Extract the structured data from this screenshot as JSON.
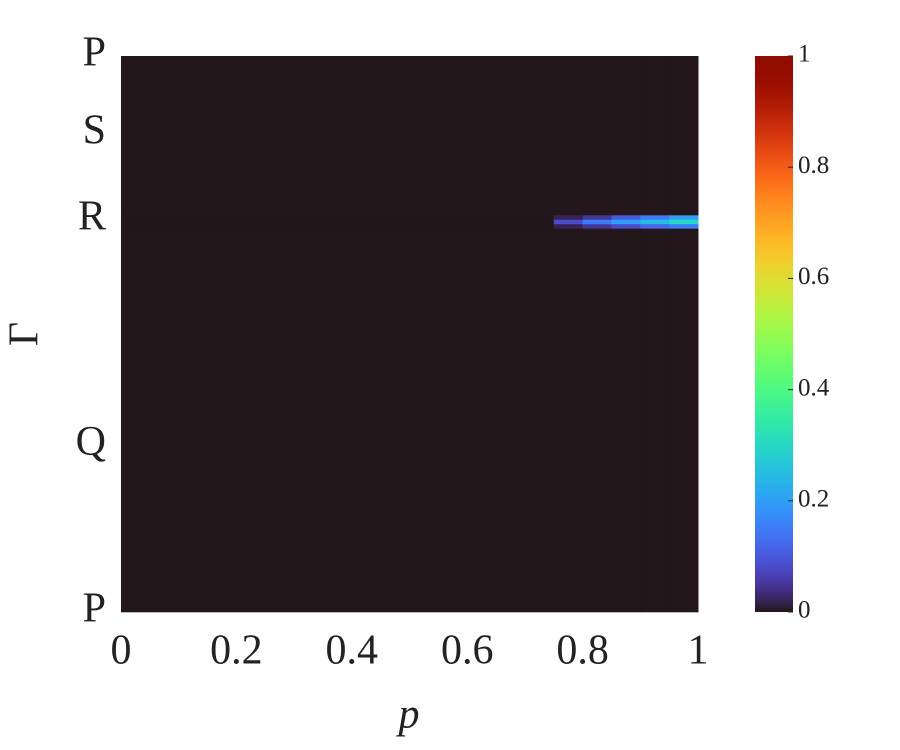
{
  "chart_data": {
    "type": "heatmap",
    "xlabel": "p",
    "ylabel": "Γ",
    "xlim": [
      0,
      1
    ],
    "xticks": [
      0,
      0.2,
      0.4,
      0.6,
      0.8,
      1
    ],
    "ylim": [
      0,
      1
    ],
    "yticks": [
      {
        "value": 0,
        "label": "P"
      },
      {
        "value": 0.3,
        "label": "Q"
      },
      {
        "value": 0.705,
        "label": "R"
      },
      {
        "value": 0.86,
        "label": "S"
      },
      {
        "value": 1,
        "label": "P"
      }
    ],
    "xbins": [
      0,
      0.75,
      0.8,
      0.85,
      0.9,
      0.95,
      1
    ],
    "ybins": [
      0,
      0.69,
      0.698,
      0.706,
      0.714,
      1
    ],
    "z": [
      [
        0,
        0,
        0,
        0,
        0,
        0
      ],
      [
        0,
        0.02,
        0.05,
        0.08,
        0.12,
        0.15
      ],
      [
        0,
        0.08,
        0.15,
        0.2,
        0.25,
        0.3
      ],
      [
        0,
        0.02,
        0.05,
        0.1,
        0.15,
        0.2
      ],
      [
        0,
        0,
        0,
        0,
        0,
        0
      ]
    ],
    "colormap": "turbo",
    "clim": [
      0,
      1
    ],
    "cticks": [
      0,
      0.2,
      0.4,
      0.6,
      0.8,
      1
    ]
  }
}
